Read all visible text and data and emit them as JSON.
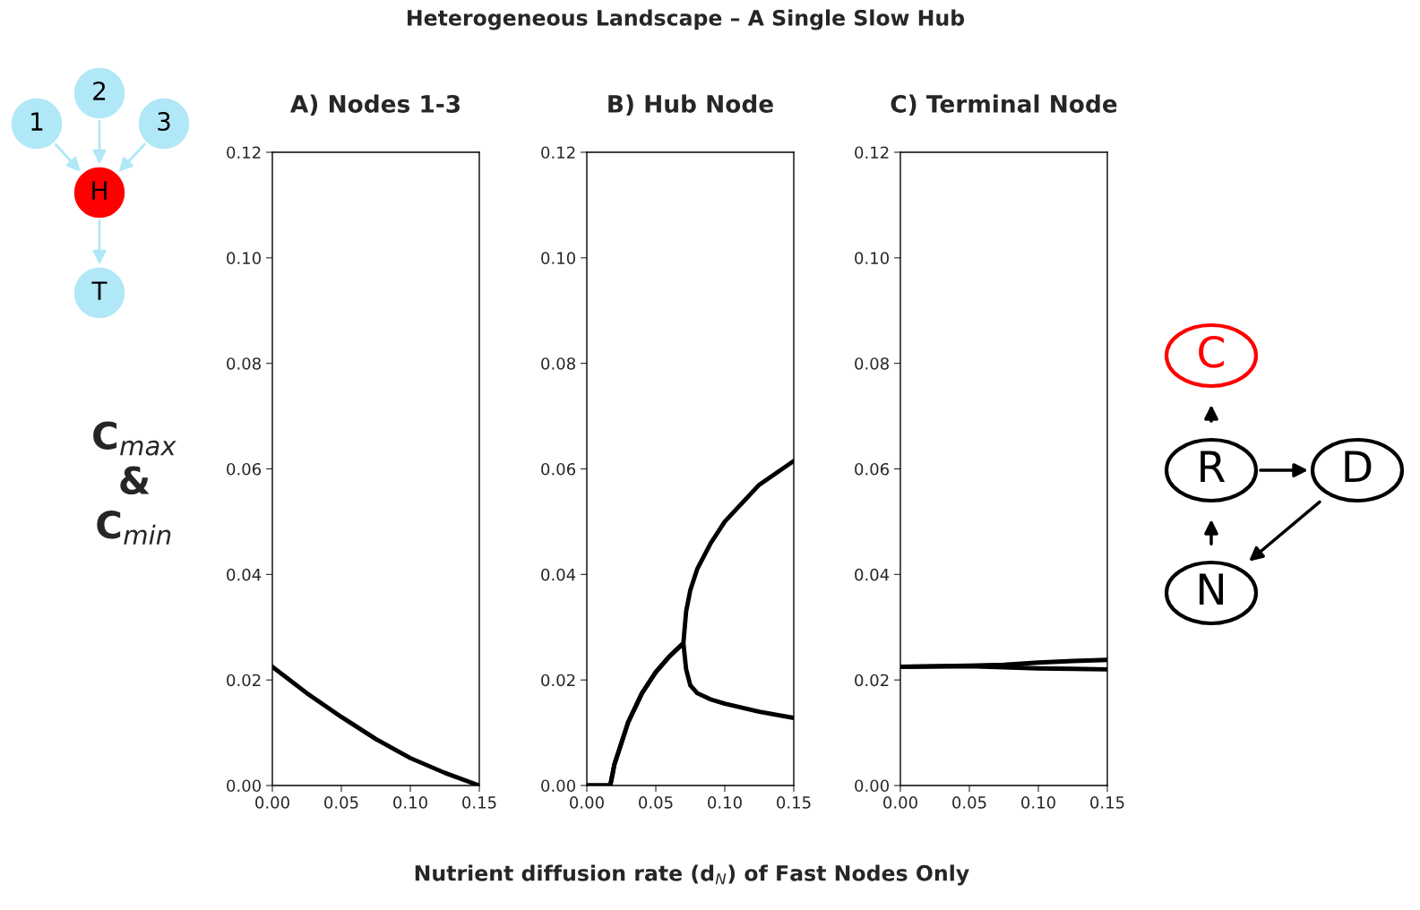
{
  "chart_data": [
    {
      "type": "other",
      "title": "Heterogeneous Landscape – A Single Slow Hub",
      "xlabel": "Nutrient diffusion rate (d$_{N}$) of Fast Nodes Only",
      "ylabel": "C$_{max}$\n&\nC$_{min}$",
      "annotations": [
        "1",
        "2",
        "3",
        "H",
        "T",
        "C",
        "R",
        "D",
        "N"
      ]
    },
    {
      "type": "line",
      "title": "A) Nodes 1-3",
      "grid": false,
      "legend": false,
      "marker": "none",
      "line_style": "solid",
      "xlim": [
        0,
        0.15
      ],
      "ylim": [
        0,
        0.12
      ],
      "xticks": [
        {
          "value": 0,
          "label": "0.00"
        },
        {
          "value": 0.05,
          "label": "0.05"
        },
        {
          "value": 0.1,
          "label": "0.10"
        },
        {
          "value": 0.15,
          "label": "0.15"
        }
      ],
      "yticks": [
        {
          "value": 0,
          "label": "0.00"
        },
        {
          "value": 0.02,
          "label": "0.02"
        },
        {
          "value": 0.04,
          "label": "0.04"
        },
        {
          "value": 0.06,
          "label": "0.06"
        },
        {
          "value": 0.08,
          "label": "0.08"
        },
        {
          "value": 0.1,
          "label": "0.10"
        },
        {
          "value": 0.12,
          "label": "0.12"
        }
      ],
      "series": [
        {
          "color": "#000000",
          "x": [
            0,
            0.025,
            0.05,
            0.075,
            0.1,
            0.125,
            0.15
          ],
          "values": [
            0.0225,
            0.0175,
            0.013,
            0.0088,
            0.0052,
            0.0024,
            0
          ]
        }
      ]
    },
    {
      "type": "line",
      "title": "B) Hub Node",
      "grid": false,
      "legend": false,
      "marker": "none",
      "line_style": "solid",
      "xlim": [
        0,
        0.15
      ],
      "ylim": [
        0,
        0.12
      ],
      "xticks": [
        {
          "value": 0,
          "label": "0.00"
        },
        {
          "value": 0.05,
          "label": "0.05"
        },
        {
          "value": 0.1,
          "label": "0.10"
        },
        {
          "value": 0.15,
          "label": "0.15"
        }
      ],
      "yticks": [
        {
          "value": 0,
          "label": "0.00"
        },
        {
          "value": 0.02,
          "label": "0.02"
        },
        {
          "value": 0.04,
          "label": "0.04"
        },
        {
          "value": 0.06,
          "label": "0.06"
        },
        {
          "value": 0.08,
          "label": "0.08"
        },
        {
          "value": 0.1,
          "label": "0.10"
        },
        {
          "value": 0.12,
          "label": "0.12"
        }
      ],
      "series": [
        {
          "color": "#000000",
          "x": [
            0,
            0.017,
            0.02,
            0.03,
            0.04,
            0.05,
            0.06,
            0.07,
            0.072,
            0.075,
            0.08,
            0.09,
            0.1,
            0.125,
            0.15
          ],
          "values": [
            0,
            0,
            0.004,
            0.012,
            0.0175,
            0.0215,
            0.0245,
            0.027,
            0.033,
            0.037,
            0.041,
            0.046,
            0.05,
            0.057,
            0.0615
          ]
        },
        {
          "color": "#000000",
          "x": [
            0,
            0.017,
            0.02,
            0.03,
            0.04,
            0.05,
            0.06,
            0.07,
            0.072,
            0.075,
            0.08,
            0.09,
            0.1,
            0.125,
            0.15
          ],
          "values": [
            0,
            0,
            0.004,
            0.012,
            0.0175,
            0.0215,
            0.0245,
            0.027,
            0.022,
            0.019,
            0.0175,
            0.0163,
            0.0155,
            0.014,
            0.0128
          ]
        }
      ]
    },
    {
      "type": "line",
      "title": "C) Terminal Node",
      "grid": false,
      "legend": false,
      "marker": "none",
      "line_style": "solid",
      "xlim": [
        0,
        0.15
      ],
      "ylim": [
        0,
        0.12
      ],
      "xticks": [
        {
          "value": 0,
          "label": "0.00"
        },
        {
          "value": 0.05,
          "label": "0.05"
        },
        {
          "value": 0.1,
          "label": "0.10"
        },
        {
          "value": 0.15,
          "label": "0.15"
        }
      ],
      "yticks": [
        {
          "value": 0,
          "label": "0.00"
        },
        {
          "value": 0.02,
          "label": "0.02"
        },
        {
          "value": 0.04,
          "label": "0.04"
        },
        {
          "value": 0.06,
          "label": "0.06"
        },
        {
          "value": 0.08,
          "label": "0.08"
        },
        {
          "value": 0.1,
          "label": "0.10"
        },
        {
          "value": 0.12,
          "label": "0.12"
        }
      ],
      "series": [
        {
          "color": "#000000",
          "x": [
            0,
            0.05,
            0.075,
            0.1,
            0.125,
            0.15
          ],
          "values": [
            0.0225,
            0.0227,
            0.0229,
            0.0233,
            0.0236,
            0.0238
          ]
        },
        {
          "color": "#000000",
          "x": [
            0,
            0.05,
            0.075,
            0.1,
            0.125,
            0.15
          ],
          "values": [
            0.0225,
            0.0226,
            0.0224,
            0.0222,
            0.0221,
            0.022
          ]
        }
      ]
    }
  ]
}
